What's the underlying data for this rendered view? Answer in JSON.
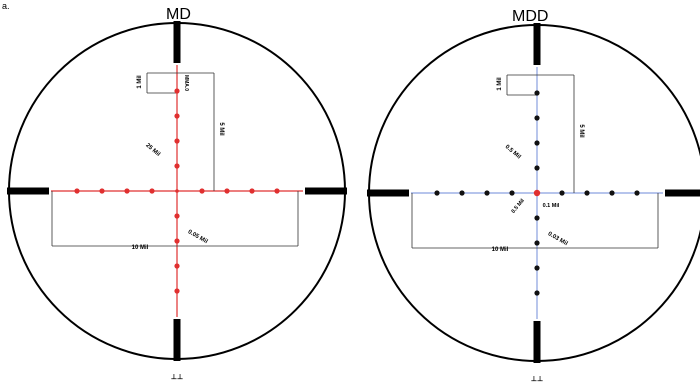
{
  "corner_mark": "a.",
  "reticles": [
    {
      "id": "md",
      "title": "MD",
      "line_color": "#e03030",
      "dot_color": "#e03030",
      "dots_count_per_arm": 4,
      "labels": {
        "top_left_box": "1 Mil",
        "top_right_small": "MMA.0",
        "right_box": "5 Mil",
        "diag_upper": "25 Mil",
        "diag_lower": "0.05 Mil",
        "bottom_box": "10 Mil"
      },
      "bottom_mark": "⊥⊥"
    },
    {
      "id": "mdd",
      "title": "MDD",
      "line_color": "#8aa0e0",
      "dot_color": "#111111",
      "dots_count_per_arm": 4,
      "labels": {
        "top_left_box": "1 Mil",
        "right_box": "5 Mil",
        "diag_upper": "0.5 Mil",
        "diag_center_left": "0.5 Mil",
        "diag_center_right": "0.1 Mil",
        "diag_lower": "0.03 Mil",
        "bottom_box": "10 Mil"
      },
      "bottom_mark": "⊥⊥"
    }
  ]
}
